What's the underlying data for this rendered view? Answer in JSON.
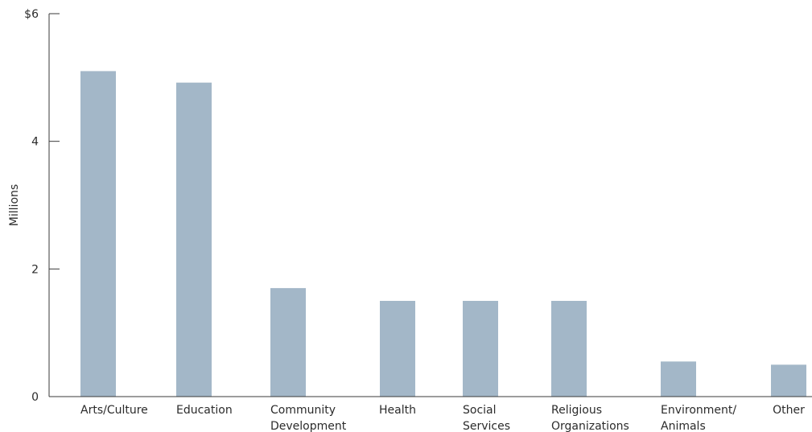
{
  "chart_data": {
    "type": "bar",
    "title": "",
    "xlabel": "",
    "ylabel": "Millions",
    "ylim": [
      0,
      6
    ],
    "yticks": [
      {
        "value": 0,
        "label": "0"
      },
      {
        "value": 2,
        "label": "2"
      },
      {
        "value": 4,
        "label": "4"
      },
      {
        "value": 6,
        "label": "$6"
      }
    ],
    "categories": [
      [
        "Arts/Culture"
      ],
      [
        "Education"
      ],
      [
        "Community",
        "Development"
      ],
      [
        "Health"
      ],
      [
        "Social",
        "Services"
      ],
      [
        "Religious",
        "Organizations"
      ],
      [
        "Environment/",
        "Animals"
      ],
      [
        "Other"
      ]
    ],
    "values": [
      5.1,
      4.92,
      1.7,
      1.5,
      1.5,
      1.5,
      0.55,
      0.5
    ],
    "bar_color": "#a3b7c8",
    "grid": false
  }
}
